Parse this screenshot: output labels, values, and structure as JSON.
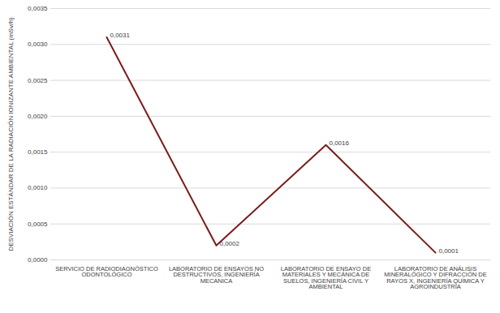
{
  "chart_data": {
    "type": "line",
    "y_label": "DESVIACIÓN ESTÁNDAR DE LA RADIACIÓN IONIZANTE AMBIENTAL (mSv/h)",
    "categories": [
      "SERVICIO DE RADIODIAGNÓSTICO ODONTOLÓGICO",
      "LABORATORIO DE ENSAYOS NO DESTRUCTIVOS, INGENIERÍA MECANICA",
      "LABORATORIO DE ENSAYO DE MATERIALES Y MECÁNICA DE SUELOS, INGENIERÍA CIVIL Y AMBIENTAL",
      "LABORATORIO DE ANÁLISIS MINERALÓGICO Y DIFRACCIÓN DE RAYOS X, INGENIERÍA QUÍMICA Y AGROINDUSTRIA"
    ],
    "values": [
      0.0031,
      0.0002,
      0.0016,
      0.0001
    ],
    "value_labels": [
      "0,0031",
      "0,0002",
      "0,0016",
      "0,0001"
    ],
    "color": "#7a1c1c",
    "ylim": [
      0,
      0.0035
    ],
    "yticks": [
      {
        "value": 0,
        "label": "0,0000"
      },
      {
        "value": 0.0005,
        "label": "0,0005"
      },
      {
        "value": 0.001,
        "label": "0,0010"
      },
      {
        "value": 0.0015,
        "label": "0,0015"
      },
      {
        "value": 0.002,
        "label": "0,0020"
      },
      {
        "value": 0.0025,
        "label": "0,0025"
      },
      {
        "value": 0.003,
        "label": "0,0030"
      },
      {
        "value": 0.0035,
        "label": "0,0035"
      }
    ],
    "grid": true,
    "data_labels": true
  }
}
